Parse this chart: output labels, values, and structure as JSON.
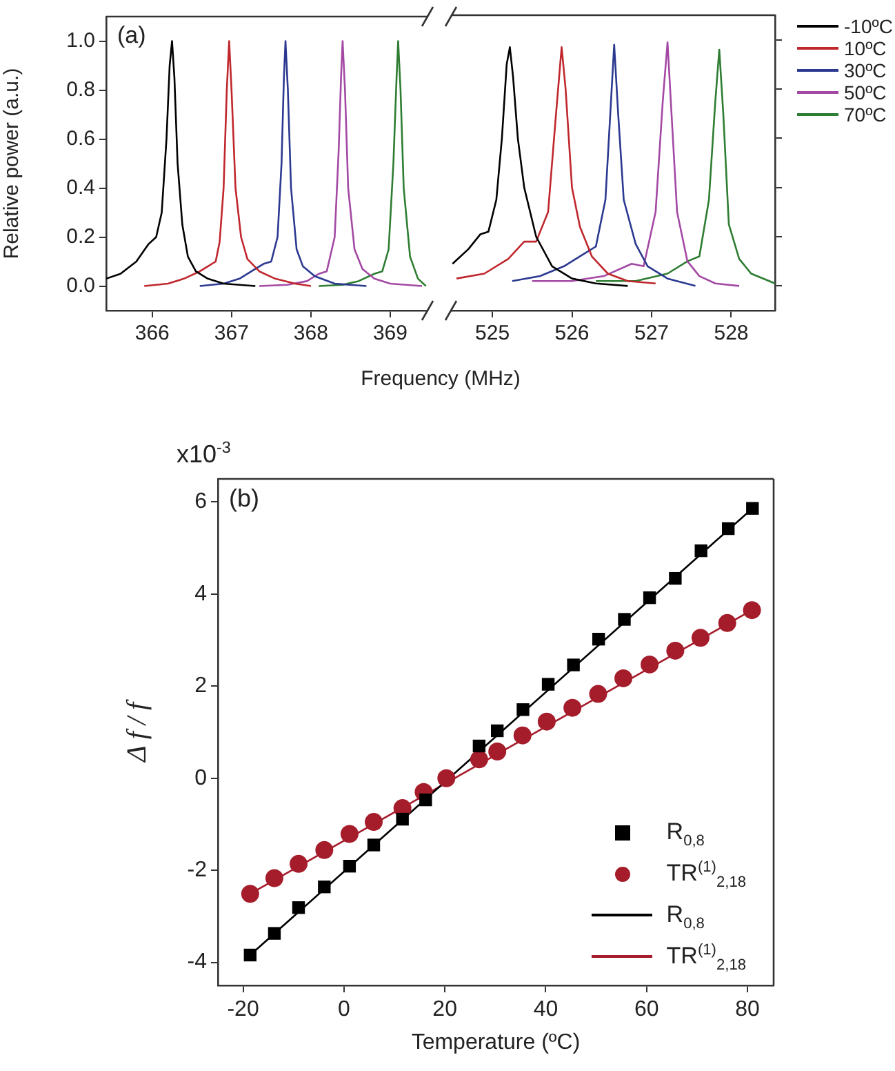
{
  "chart_data": [
    {
      "type": "line",
      "ylabel": "Relative power (a.u.)",
      "xlabel": "Frequency (MHz)",
      "annotations": [
        "(a)"
      ],
      "xlim": [
        365.42,
        369.47
      ],
      "xticks": [
        366,
        367,
        368,
        369
      ],
      "ylim": [
        -0.1,
        1.1
      ],
      "yticks": [
        {
          "value": 0,
          "label": "0.0"
        },
        {
          "value": 0.2,
          "label": "0.2"
        },
        {
          "value": 0.4,
          "label": "0.4"
        },
        {
          "value": 0.6,
          "label": "0.6"
        },
        {
          "value": 0.8,
          "label": "0.8"
        },
        {
          "value": 1,
          "label": "1.0"
        }
      ],
      "series": [
        {
          "color": "#000000",
          "x": [
            365.42,
            365.6,
            365.8,
            365.95,
            366.05,
            366.12,
            366.18,
            366.22,
            366.25,
            366.28,
            366.32,
            366.38,
            366.45,
            366.55,
            366.7,
            366.9,
            367.3
          ],
          "values": [
            0.03,
            0.05,
            0.1,
            0.17,
            0.2,
            0.3,
            0.6,
            0.9,
            1.0,
            0.85,
            0.5,
            0.25,
            0.12,
            0.06,
            0.03,
            0.01,
            0.0
          ]
        },
        {
          "color": "#c0272d",
          "x": [
            365.9,
            366.2,
            366.4,
            366.6,
            366.7,
            366.8,
            366.85,
            366.9,
            366.94,
            366.97,
            367.0,
            367.05,
            367.12,
            367.2,
            367.35,
            367.55,
            367.8,
            368.0
          ],
          "values": [
            0,
            0.01,
            0.03,
            0.06,
            0.08,
            0.1,
            0.18,
            0.4,
            0.8,
            1.0,
            0.8,
            0.4,
            0.2,
            0.11,
            0.06,
            0.03,
            0.01,
            0.0
          ]
        },
        {
          "color": "#2b3990",
          "x": [
            366.6,
            366.9,
            367.1,
            367.3,
            367.4,
            367.5,
            367.58,
            367.63,
            367.66,
            367.68,
            367.71,
            367.75,
            367.82,
            367.9,
            368.05,
            368.3,
            368.7
          ],
          "values": [
            0,
            0.01,
            0.03,
            0.07,
            0.09,
            0.1,
            0.2,
            0.5,
            0.85,
            1.0,
            0.8,
            0.4,
            0.15,
            0.08,
            0.04,
            0.01,
            0.0
          ]
        },
        {
          "color": "#a349a4",
          "x": [
            367.35,
            367.7,
            367.95,
            368.1,
            368.2,
            368.3,
            368.35,
            368.38,
            368.4,
            368.43,
            368.47,
            368.55,
            368.65,
            368.8,
            369.0,
            369.4
          ],
          "values": [
            0,
            0.005,
            0.02,
            0.05,
            0.06,
            0.2,
            0.55,
            0.85,
            1.0,
            0.8,
            0.4,
            0.15,
            0.07,
            0.03,
            0.01,
            0.0
          ]
        },
        {
          "color": "#2e7d32",
          "x": [
            368.1,
            368.4,
            368.6,
            368.8,
            368.9,
            368.98,
            369.04,
            369.08,
            369.1,
            369.13,
            369.17,
            369.25,
            369.35,
            369.45
          ],
          "values": [
            0,
            0.005,
            0.02,
            0.05,
            0.06,
            0.15,
            0.5,
            0.85,
            1.0,
            0.8,
            0.4,
            0.12,
            0.03,
            0.0
          ]
        }
      ]
    },
    {
      "type": "line",
      "legend": "right",
      "tick_labels": "x",
      "xlim": [
        524.48,
        528.55
      ],
      "xticks": [
        525,
        526,
        527,
        528
      ],
      "ylim": [
        -0.1,
        1.1
      ],
      "yticks": [
        {
          "value": 0,
          "label": null
        },
        {
          "value": 0.2,
          "label": null
        },
        {
          "value": 0.4,
          "label": null
        },
        {
          "value": 0.6,
          "label": null
        },
        {
          "value": 0.8,
          "label": null
        },
        {
          "value": 1,
          "label": null
        }
      ],
      "series": [
        {
          "name": "-10ºC",
          "color": "#000000",
          "x": [
            524.5,
            524.7,
            524.85,
            524.95,
            525.05,
            525.12,
            525.18,
            525.22,
            525.26,
            525.32,
            525.4,
            525.55,
            525.75,
            526.0,
            526.3,
            526.7
          ],
          "values": [
            0.09,
            0.15,
            0.21,
            0.22,
            0.35,
            0.6,
            0.9,
            0.97,
            0.85,
            0.6,
            0.4,
            0.2,
            0.08,
            0.03,
            0.01,
            0.0
          ]
        },
        {
          "name": "10ºC",
          "color": "#c0272d",
          "x": [
            524.55,
            524.9,
            525.2,
            525.4,
            525.55,
            525.7,
            525.8,
            525.87,
            525.92,
            526.0,
            526.1,
            526.25,
            526.45,
            526.7,
            527.05
          ],
          "values": [
            0.03,
            0.05,
            0.11,
            0.18,
            0.18,
            0.3,
            0.7,
            0.97,
            0.8,
            0.4,
            0.24,
            0.12,
            0.05,
            0.02,
            0.01
          ]
        },
        {
          "name": "30ºC",
          "color": "#2b3990",
          "x": [
            525.25,
            525.6,
            525.9,
            526.15,
            526.3,
            526.42,
            526.49,
            526.53,
            526.58,
            526.65,
            526.8,
            526.95,
            527.2,
            527.55
          ],
          "values": [
            0.02,
            0.04,
            0.08,
            0.13,
            0.16,
            0.35,
            0.75,
            0.98,
            0.7,
            0.35,
            0.17,
            0.08,
            0.03,
            0.0
          ]
        },
        {
          "name": "50ºC",
          "color": "#a349a4",
          "x": [
            525.5,
            526.0,
            526.4,
            526.75,
            526.9,
            527.05,
            527.14,
            527.2,
            527.25,
            527.32,
            527.45,
            527.6,
            527.8,
            528.1
          ],
          "values": [
            0.02,
            0.02,
            0.04,
            0.09,
            0.08,
            0.3,
            0.75,
            0.99,
            0.7,
            0.3,
            0.1,
            0.04,
            0.01,
            0.0
          ]
        },
        {
          "name": "70ºC",
          "color": "#2e7d32",
          "x": [
            526.3,
            526.8,
            527.2,
            527.45,
            527.6,
            527.72,
            527.8,
            527.85,
            527.9,
            527.97,
            528.1,
            528.25,
            528.55
          ],
          "values": [
            0.02,
            0.02,
            0.05,
            0.1,
            0.12,
            0.35,
            0.75,
            0.96,
            0.7,
            0.25,
            0.11,
            0.05,
            0.01
          ]
        }
      ]
    },
    {
      "type": "scatter",
      "xlabel": "Temperature (ºC)",
      "ylabel": "Δ f / f",
      "annotations": [
        "(b)",
        "x10$^{-3}$"
      ],
      "legend": "bottom right",
      "xlim": [
        -25,
        85.2
      ],
      "xticks": [
        -20,
        0,
        20,
        40,
        60,
        80
      ],
      "ylim": [
        -4.5,
        6.5
      ],
      "yticks": [
        -4,
        -2,
        0,
        2,
        4,
        6
      ],
      "series": [
        {
          "name": "R$_{0,8}$",
          "type": "scatter",
          "marker": "square",
          "color": "#000000",
          "x": [
            -18.6,
            -13.8,
            -9.0,
            -3.9,
            1.1,
            5.9,
            11.6,
            16.2,
            26.8,
            30.4,
            35.5,
            40.5,
            45.5,
            50.5,
            55.6,
            60.6,
            65.7,
            70.8,
            76.2,
            81.0
          ],
          "values": [
            -3.84,
            -3.37,
            -2.81,
            -2.36,
            -1.91,
            -1.45,
            -0.89,
            -0.47,
            0.7,
            1.03,
            1.49,
            2.04,
            2.46,
            3.02,
            3.45,
            3.92,
            4.34,
            4.94,
            5.42,
            5.86
          ]
        },
        {
          "name": "TR$^{(1)}$$_{2,18}$",
          "type": "scatter",
          "marker": "circle",
          "color": "#a51c2b",
          "x": [
            -18.6,
            -13.8,
            -9.0,
            -3.9,
            1.1,
            5.9,
            11.6,
            15.8,
            20.3,
            26.8,
            30.4,
            35.4,
            40.2,
            45.3,
            50.4,
            55.4,
            60.6,
            65.7,
            70.7,
            76.0,
            80.9
          ],
          "values": [
            -2.51,
            -2.17,
            -1.86,
            -1.56,
            -1.21,
            -0.95,
            -0.65,
            -0.3,
            0.0,
            0.41,
            0.58,
            0.93,
            1.23,
            1.53,
            1.83,
            2.17,
            2.47,
            2.77,
            3.05,
            3.37,
            3.65
          ]
        },
        {
          "name": "R$_{0,8}$",
          "type": "line",
          "marker": "none",
          "color": "#000000",
          "x": [
            -18.6,
            81.0
          ],
          "values": [
            -3.84,
            5.86
          ]
        },
        {
          "name": "TR$^{(1)}$$_{2,18}$",
          "type": "line",
          "marker": "none",
          "color": "#a51c2b",
          "x": [
            -18.6,
            80.9
          ],
          "values": [
            -2.51,
            3.65
          ]
        }
      ]
    }
  ]
}
